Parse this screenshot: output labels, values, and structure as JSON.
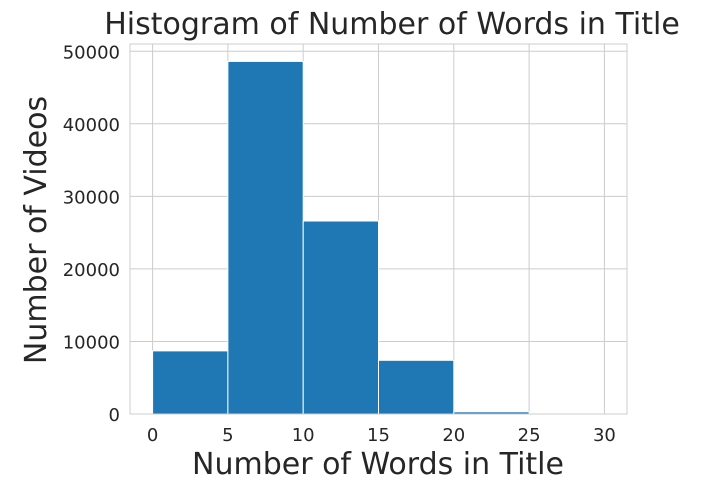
{
  "chart_data": {
    "type": "bar",
    "title": "Histogram of Number of Words in Title",
    "xlabel": "Number of Words in Title",
    "ylabel": "Number of Videos",
    "bins": [
      {
        "start": 0,
        "end": 5,
        "value": 8700
      },
      {
        "start": 5,
        "end": 10,
        "value": 48600
      },
      {
        "start": 10,
        "end": 15,
        "value": 26600
      },
      {
        "start": 15,
        "end": 20,
        "value": 7400
      },
      {
        "start": 20,
        "end": 25,
        "value": 300
      },
      {
        "start": 25,
        "end": 30,
        "value": 20
      }
    ],
    "xlim": [
      -1.5,
      31.5
    ],
    "ylim": [
      0,
      51000
    ],
    "xticks": [
      "0",
      "5",
      "10",
      "15",
      "20",
      "25",
      "30"
    ],
    "yticks": [
      "0",
      "10000",
      "20000",
      "30000",
      "40000",
      "50000"
    ],
    "grid": true,
    "bar_color": "#1f77b4",
    "grid_color": "#cccccc"
  }
}
